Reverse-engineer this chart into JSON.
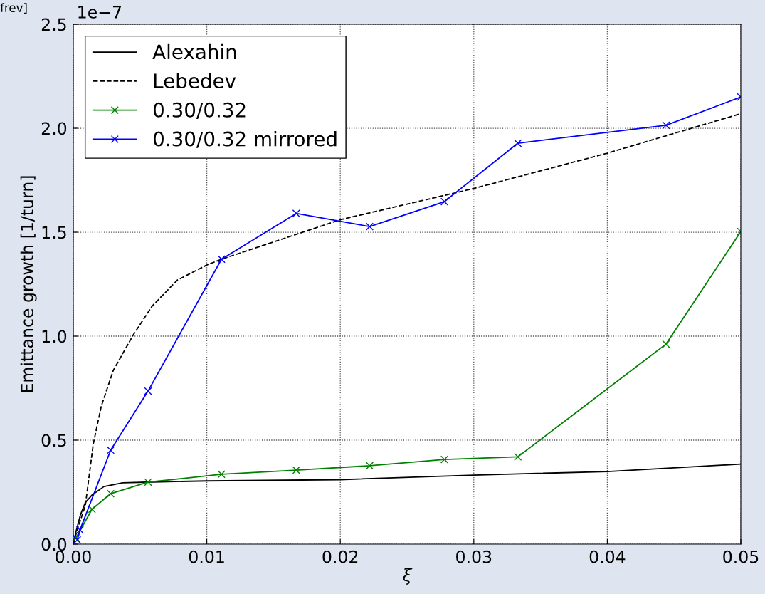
{
  "chart_data": {
    "type": "line",
    "xlabel": "ξ",
    "ylabel": "Emittance growth [1/turn]",
    "annotations": [
      "1e−7",
      "frev]"
    ],
    "xlim": [
      0,
      0.05
    ],
    "xticks": [
      {
        "value": 0,
        "label": "0.00"
      },
      0.01,
      0.02,
      0.03,
      0.04,
      0.05
    ],
    "ylim": [
      0,
      2.5
    ],
    "yticks": [
      {
        "value": 0,
        "label": "0.0"
      },
      0.5,
      {
        "value": 1,
        "label": "1.0"
      },
      1.5,
      {
        "value": 2,
        "label": "2.0"
      },
      2.5
    ],
    "grid": true,
    "legend": "top left",
    "series": [
      {
        "name": "Alexahin",
        "color": "#000000",
        "marker": "none",
        "line_style": "solid",
        "x": [
          0,
          0.0002,
          0.00053,
          0.0009,
          0.0014,
          0.0023,
          0.0037,
          0.0055,
          0.01,
          0.02,
          0.03,
          0.04,
          0.05
        ],
        "values": [
          0,
          0.06,
          0.14,
          0.2,
          0.236,
          0.277,
          0.295,
          0.298,
          0.304,
          0.31,
          0.332,
          0.349,
          0.385
        ]
      },
      {
        "name": "Lebedev",
        "color": "#000000",
        "marker": "none",
        "line_style": "dashed",
        "x": [
          0,
          0.0003,
          0.0009,
          0.0015,
          0.0021,
          0.003,
          0.0045,
          0.0059,
          0.0078,
          0.01,
          0.0111,
          0.02,
          0.03,
          0.04,
          0.05
        ],
        "values": [
          0,
          0.07,
          0.185,
          0.483,
          0.664,
          0.836,
          1.007,
          1.144,
          1.27,
          1.342,
          1.37,
          1.56,
          1.71,
          1.88,
          2.07
        ]
      },
      {
        "name": "0.30/0.32",
        "color": "#008000",
        "marker": "cross",
        "line_style": "solid",
        "x": [
          0.0002,
          0.0014,
          0.0028,
          0.0056,
          0.0111,
          0.0167,
          0.0222,
          0.0278,
          0.0333,
          0.0444,
          0.05
        ],
        "values": [
          0.03,
          0.168,
          0.243,
          0.298,
          0.336,
          0.356,
          0.377,
          0.407,
          0.42,
          0.962,
          1.503
        ]
      },
      {
        "name": "0.30/0.32 mirrored",
        "color": "#0000ff",
        "marker": "cross",
        "line_style": "solid",
        "x": [
          0.0003,
          0.0005,
          0.0028,
          0.0056,
          0.0111,
          0.0167,
          0.0222,
          0.0278,
          0.0333,
          0.0444,
          0.05
        ],
        "values": [
          0.02,
          0.068,
          0.452,
          0.736,
          1.37,
          1.59,
          1.527,
          1.647,
          1.928,
          2.014,
          2.15
        ]
      }
    ]
  }
}
